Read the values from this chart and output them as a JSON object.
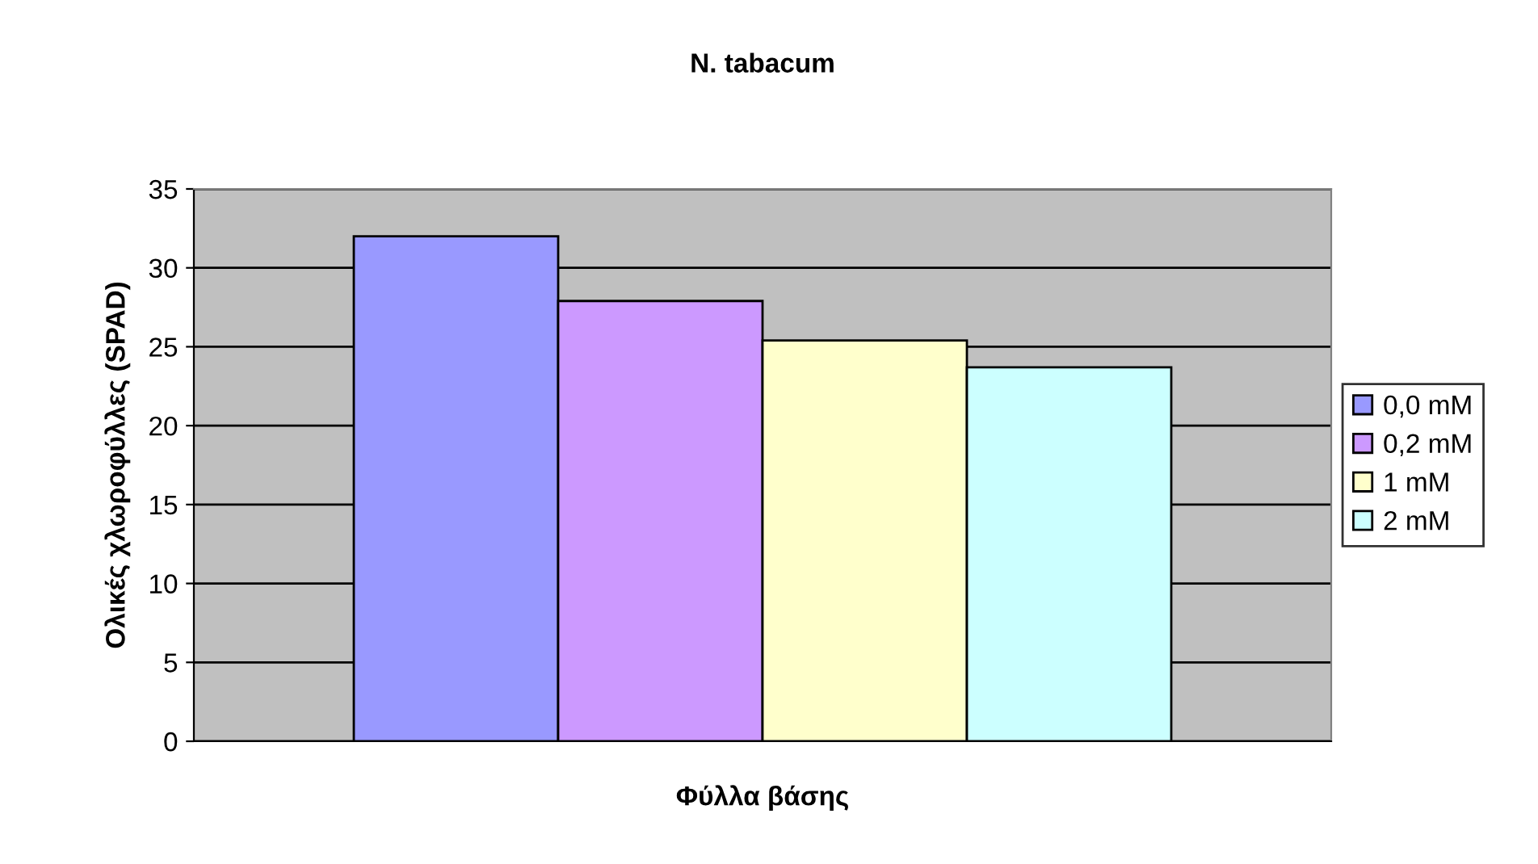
{
  "chart_data": {
    "type": "bar",
    "title": "N. tabacum",
    "xlabel": "Φύλλα βάσης",
    "ylabel": "Ολικές χλωροφύλλες (SPAD)",
    "categories": [
      null
    ],
    "series": [
      {
        "name": "0,0 mM",
        "color": "#9999ff",
        "values": [
          32.0
        ]
      },
      {
        "name": "0,2 mM",
        "color": "#cc99ff",
        "values": [
          27.9
        ]
      },
      {
        "name": "1 mM",
        "color": "#ffffcc",
        "values": [
          25.4
        ]
      },
      {
        "name": "2 mM",
        "color": "#ccffff",
        "values": [
          23.7
        ]
      }
    ],
    "ylim": [
      0,
      35
    ],
    "yticks": [
      0,
      5,
      10,
      15,
      20,
      25,
      30,
      35
    ],
    "grid": "y",
    "legend": "right"
  }
}
